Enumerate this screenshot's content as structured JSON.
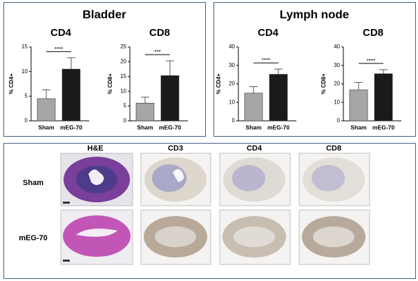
{
  "panels": [
    {
      "title": "Bladder"
    },
    {
      "title": "Lymph node"
    }
  ],
  "chart_data": [
    {
      "type": "bar",
      "title": "CD4",
      "ylabel": "% CD4+",
      "categories": [
        "Sham",
        "mEG-70"
      ],
      "values": [
        4.5,
        10.5
      ],
      "errors": [
        1.8,
        2.3
      ],
      "colors": [
        "#a6a6a6",
        "#1a1a1a"
      ],
      "ylim": [
        0,
        15
      ],
      "yticks": [
        0,
        5,
        10,
        15
      ],
      "significance": "****"
    },
    {
      "type": "bar",
      "title": "CD8",
      "ylabel": "% CD8+",
      "categories": [
        "Sham",
        "mEG-70"
      ],
      "values": [
        6,
        15.3
      ],
      "errors": [
        2,
        5
      ],
      "colors": [
        "#a6a6a6",
        "#1a1a1a"
      ],
      "ylim": [
        0,
        25
      ],
      "yticks": [
        0,
        5,
        10,
        15,
        20,
        25
      ],
      "significance": "***"
    },
    {
      "type": "bar",
      "title": "CD4",
      "ylabel": "% CD4+",
      "categories": [
        "Sham",
        "mEG-70"
      ],
      "values": [
        15,
        25.2
      ],
      "errors": [
        3.5,
        2.8
      ],
      "colors": [
        "#a6a6a6",
        "#1a1a1a"
      ],
      "ylim": [
        0,
        40
      ],
      "yticks": [
        0,
        10,
        20,
        30,
        40
      ],
      "significance": "****"
    },
    {
      "type": "bar",
      "title": "CD8",
      "ylabel": "% CD8+",
      "categories": [
        "Sham",
        "mEG-70"
      ],
      "values": [
        16.8,
        25.5
      ],
      "errors": [
        4,
        2.2
      ],
      "colors": [
        "#a6a6a6",
        "#1a1a1a"
      ],
      "ylim": [
        0,
        40
      ],
      "yticks": [
        0,
        10,
        20,
        30,
        40
      ],
      "significance": "****"
    }
  ],
  "histology": {
    "columns": [
      "H&E",
      "CD3",
      "CD4",
      "CD8"
    ],
    "rows": [
      "Sham",
      "mEG-70"
    ]
  }
}
